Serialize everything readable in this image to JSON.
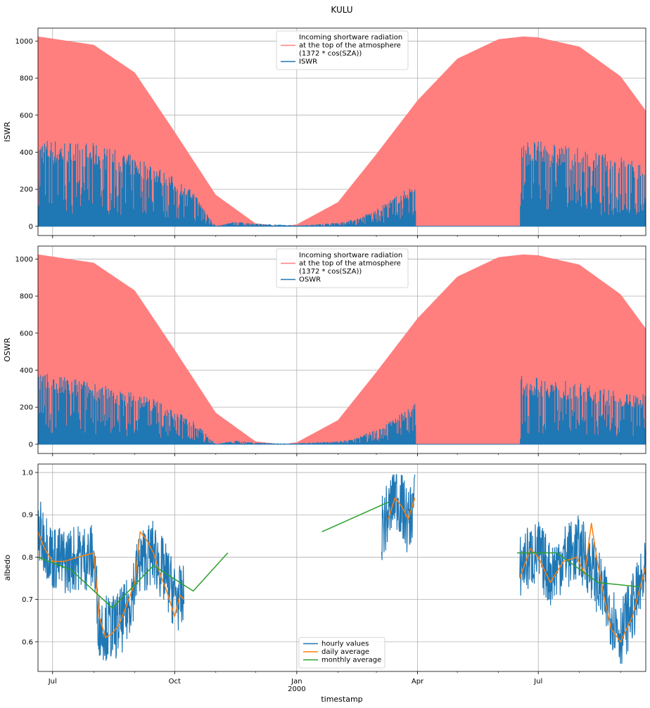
{
  "figure_title": "KULU",
  "xlabel": "timestamp",
  "colors": {
    "toa": "#ff7f7f",
    "hourly": "#1f77b4",
    "daily": "#ff7f0e",
    "monthly": "#2ca02c",
    "grid": "#b0b0b0"
  },
  "x_ticks": [
    {
      "label": "Jul",
      "sub": "",
      "date": "1999-07-01"
    },
    {
      "label": "Oct",
      "sub": "",
      "date": "1999-10-01"
    },
    {
      "label": "Jan",
      "sub": "2000",
      "date": "2000-01-01"
    },
    {
      "label": "Apr",
      "sub": "",
      "date": "2000-04-01"
    },
    {
      "label": "Jul",
      "sub": "",
      "date": "2000-07-01"
    }
  ],
  "x_range": [
    "1999-06-20",
    "2000-09-20"
  ],
  "chart_data": [
    {
      "type": "area",
      "ylabel": "ISWR",
      "ylim": [
        -50,
        1070
      ],
      "yticks": [
        0,
        200,
        400,
        600,
        800,
        1000
      ],
      "grid": true,
      "legend_position": "top-center",
      "legend": [
        "Incoming shortware radiation\nat the top of the atmosphere\n(1372 * cos(SZA))",
        "ISWR"
      ],
      "series": [
        {
          "name": "Incoming shortware radiation at the top of the atmosphere (1372 * cos(SZA))",
          "style": "filled-envelope",
          "x": [
            "1999-06-20",
            "1999-08-01",
            "1999-09-01",
            "1999-10-01",
            "1999-11-01",
            "1999-12-01",
            "1999-12-21",
            "2000-01-01",
            "2000-02-01",
            "2000-03-01",
            "2000-04-01",
            "2000-05-01",
            "2000-06-01",
            "2000-06-20",
            "2000-07-01",
            "2000-08-01",
            "2000-09-01",
            "2000-09-20"
          ],
          "y": [
            1025,
            980,
            830,
            510,
            170,
            15,
            0,
            10,
            130,
            390,
            680,
            905,
            1010,
            1025,
            1020,
            970,
            810,
            625
          ]
        },
        {
          "name": "ISWR",
          "style": "spiky-envelope",
          "x": [
            "1999-06-20",
            "1999-07-01",
            "1999-07-15",
            "1999-08-01",
            "1999-08-15",
            "1999-09-01",
            "1999-09-15",
            "1999-10-01",
            "1999-10-15",
            "1999-11-01",
            "1999-11-15",
            "1999-12-01",
            "1999-12-15",
            "2000-01-01",
            "2000-01-15",
            "2000-02-01",
            "2000-02-15",
            "2000-03-01",
            "2000-03-15",
            "2000-03-30",
            "2000-03-31",
            "2000-06-17",
            "2000-06-18",
            "2000-07-01",
            "2000-07-15",
            "2000-08-01",
            "2000-08-15",
            "2000-09-01",
            "2000-09-20"
          ],
          "y": [
            480,
            470,
            460,
            450,
            420,
            380,
            340,
            260,
            190,
            0,
            25,
            15,
            10,
            5,
            10,
            20,
            40,
            90,
            160,
            230,
            0,
            0,
            470,
            460,
            450,
            420,
            400,
            380,
            330
          ]
        }
      ]
    },
    {
      "type": "area",
      "ylabel": "OSWR",
      "ylim": [
        -50,
        1070
      ],
      "yticks": [
        0,
        200,
        400,
        600,
        800,
        1000
      ],
      "grid": true,
      "legend_position": "top-center",
      "legend": [
        "Incoming shortware radiation\nat the top of the atmosphere\n(1372 * cos(SZA))",
        "OSWR"
      ],
      "series": [
        {
          "name": "Incoming shortware radiation at the top of the atmosphere (1372 * cos(SZA))",
          "style": "filled-envelope",
          "x": [
            "1999-06-20",
            "1999-08-01",
            "1999-09-01",
            "1999-10-01",
            "1999-11-01",
            "1999-12-01",
            "1999-12-21",
            "2000-01-01",
            "2000-02-01",
            "2000-03-01",
            "2000-04-01",
            "2000-05-01",
            "2000-06-01",
            "2000-06-20",
            "2000-07-01",
            "2000-08-01",
            "2000-09-01",
            "2000-09-20"
          ],
          "y": [
            1025,
            980,
            830,
            510,
            170,
            15,
            0,
            10,
            130,
            390,
            680,
            905,
            1010,
            1025,
            1020,
            970,
            810,
            625
          ]
        },
        {
          "name": "OSWR",
          "style": "spiky-envelope",
          "x": [
            "1999-06-20",
            "1999-07-01",
            "1999-07-15",
            "1999-08-01",
            "1999-08-15",
            "1999-09-01",
            "1999-09-15",
            "1999-10-01",
            "1999-10-15",
            "1999-11-01",
            "1999-11-15",
            "1999-12-01",
            "1999-12-15",
            "2000-01-01",
            "2000-01-15",
            "2000-02-01",
            "2000-02-15",
            "2000-03-01",
            "2000-03-15",
            "2000-03-30",
            "2000-03-31",
            "2000-06-17",
            "2000-06-18",
            "2000-07-01",
            "2000-07-15",
            "2000-08-01",
            "2000-08-15",
            "2000-09-01",
            "2000-09-20"
          ],
          "y": [
            400,
            370,
            360,
            340,
            300,
            280,
            250,
            180,
            130,
            0,
            20,
            10,
            5,
            5,
            10,
            15,
            35,
            80,
            150,
            220,
            0,
            0,
            370,
            360,
            350,
            330,
            310,
            280,
            270
          ]
        }
      ]
    },
    {
      "type": "line",
      "ylabel": "albedo",
      "ylim": [
        0.53,
        1.02
      ],
      "yticks": [
        0.6,
        0.7,
        0.8,
        0.9,
        1.0
      ],
      "grid": true,
      "legend_position": "bottom-center",
      "legend": [
        "hourly values",
        "daily average",
        "monthly average"
      ],
      "series": [
        {
          "name": "hourly values",
          "style": "noisy",
          "segments": [
            {
              "x": [
                "1999-06-20",
                "1999-06-25",
                "1999-07-01",
                "1999-07-10",
                "1999-07-20",
                "1999-08-01",
                "1999-08-05",
                "1999-08-15",
                "1999-08-25",
                "1999-09-05",
                "1999-09-15",
                "1999-09-25",
                "1999-10-01",
                "1999-10-05",
                "1999-10-08"
              ],
              "y": [
                0.86,
                0.84,
                0.8,
                0.79,
                0.8,
                0.8,
                0.64,
                0.63,
                0.66,
                0.79,
                0.81,
                0.75,
                0.71,
                0.7,
                0.7
              ]
            },
            {
              "x": [
                "2000-03-05",
                "2000-03-10",
                "2000-03-15",
                "2000-03-20",
                "2000-03-25",
                "2000-03-30"
              ],
              "y": [
                0.87,
                0.9,
                0.95,
                0.92,
                0.88,
                0.94
              ]
            },
            {
              "x": [
                "2000-06-17",
                "2000-06-25",
                "2000-07-01",
                "2000-07-10",
                "2000-07-20",
                "2000-08-01",
                "2000-08-10",
                "2000-08-20",
                "2000-09-01",
                "2000-09-10",
                "2000-09-20"
              ],
              "y": [
                0.78,
                0.8,
                0.81,
                0.76,
                0.8,
                0.82,
                0.78,
                0.7,
                0.62,
                0.68,
                0.76
              ]
            }
          ]
        },
        {
          "name": "daily average",
          "segments": [
            {
              "x": [
                "1999-06-20",
                "1999-06-25",
                "1999-07-01",
                "1999-07-10",
                "1999-07-20",
                "1999-08-01",
                "1999-08-05",
                "1999-08-10",
                "1999-08-15",
                "1999-08-20",
                "1999-08-25",
                "1999-09-01",
                "1999-09-05",
                "1999-09-10",
                "1999-09-15",
                "1999-09-20",
                "1999-09-25",
                "1999-10-01",
                "1999-10-05",
                "1999-10-08"
              ],
              "y": [
                0.86,
                0.82,
                0.79,
                0.79,
                0.8,
                0.81,
                0.66,
                0.61,
                0.62,
                0.64,
                0.68,
                0.74,
                0.86,
                0.84,
                0.81,
                0.76,
                0.72,
                0.66,
                0.71,
                0.7
              ]
            },
            {
              "x": [
                "2000-03-10",
                "2000-03-15",
                "2000-03-20",
                "2000-03-25",
                "2000-03-30"
              ],
              "y": [
                0.89,
                0.94,
                0.92,
                0.89,
                0.94
              ]
            },
            {
              "x": [
                "2000-06-17",
                "2000-06-25",
                "2000-07-01",
                "2000-07-10",
                "2000-07-20",
                "2000-07-30",
                "2000-08-05",
                "2000-08-10",
                "2000-08-15",
                "2000-08-20",
                "2000-08-25",
                "2000-09-01",
                "2000-09-10",
                "2000-09-15",
                "2000-09-20"
              ],
              "y": [
                0.75,
                0.82,
                0.8,
                0.74,
                0.79,
                0.8,
                0.76,
                0.88,
                0.78,
                0.7,
                0.63,
                0.6,
                0.66,
                0.72,
                0.78
              ]
            }
          ]
        },
        {
          "name": "monthly average",
          "segments": [
            {
              "x": [
                "1999-06-20",
                "1999-07-15",
                "1999-08-15",
                "1999-09-15",
                "1999-10-15",
                "1999-11-10"
              ],
              "y": [
                0.8,
                0.77,
                0.68,
                0.78,
                0.72,
                0.81
              ]
            },
            {
              "x": [
                "2000-01-20",
                "2000-03-10"
              ],
              "y": [
                0.86,
                0.93
              ]
            },
            {
              "x": [
                "2000-06-15",
                "2000-07-15",
                "2000-08-15",
                "2000-09-15"
              ],
              "y": [
                0.81,
                0.81,
                0.74,
                0.73
              ]
            }
          ]
        }
      ]
    }
  ]
}
